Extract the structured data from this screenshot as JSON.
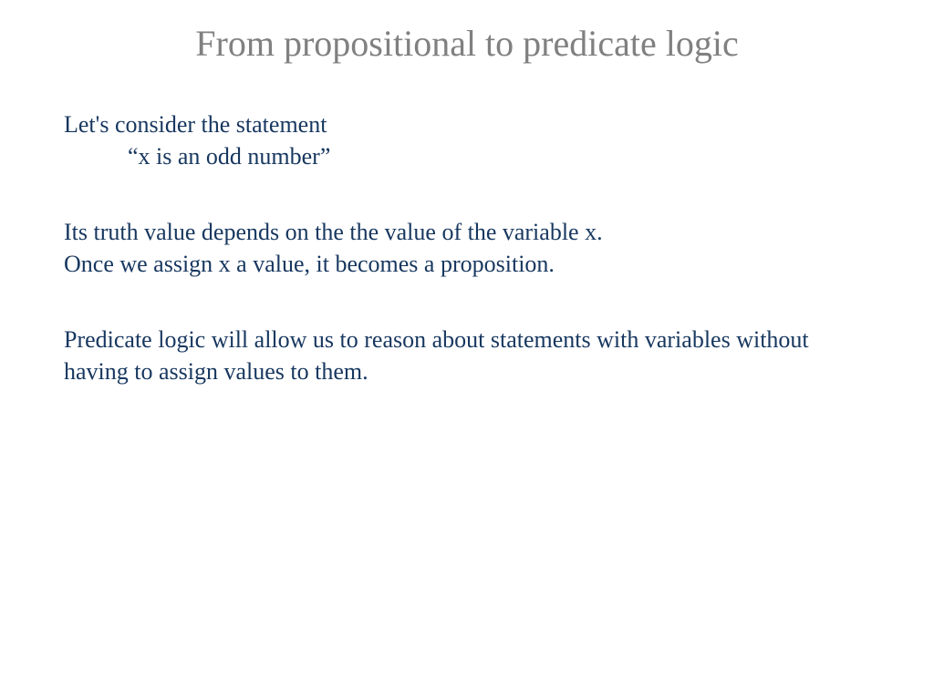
{
  "title": "From propositional to predicate logic",
  "intro": "Let's consider the statement",
  "example": "“x is an odd number”",
  "para1": "Its truth value depends on the the value of the variable x.",
  "para2": "Once we assign x a value, it becomes a proposition.",
  "para3": "Predicate logic will allow us to reason about statements with variables without having to assign values to them.",
  "colors": {
    "title": "#808080",
    "body": "#17375f",
    "background": "#ffffff"
  },
  "typography": {
    "font_family": "Comic Sans MS",
    "title_fontsize": 40,
    "body_fontsize": 26
  }
}
